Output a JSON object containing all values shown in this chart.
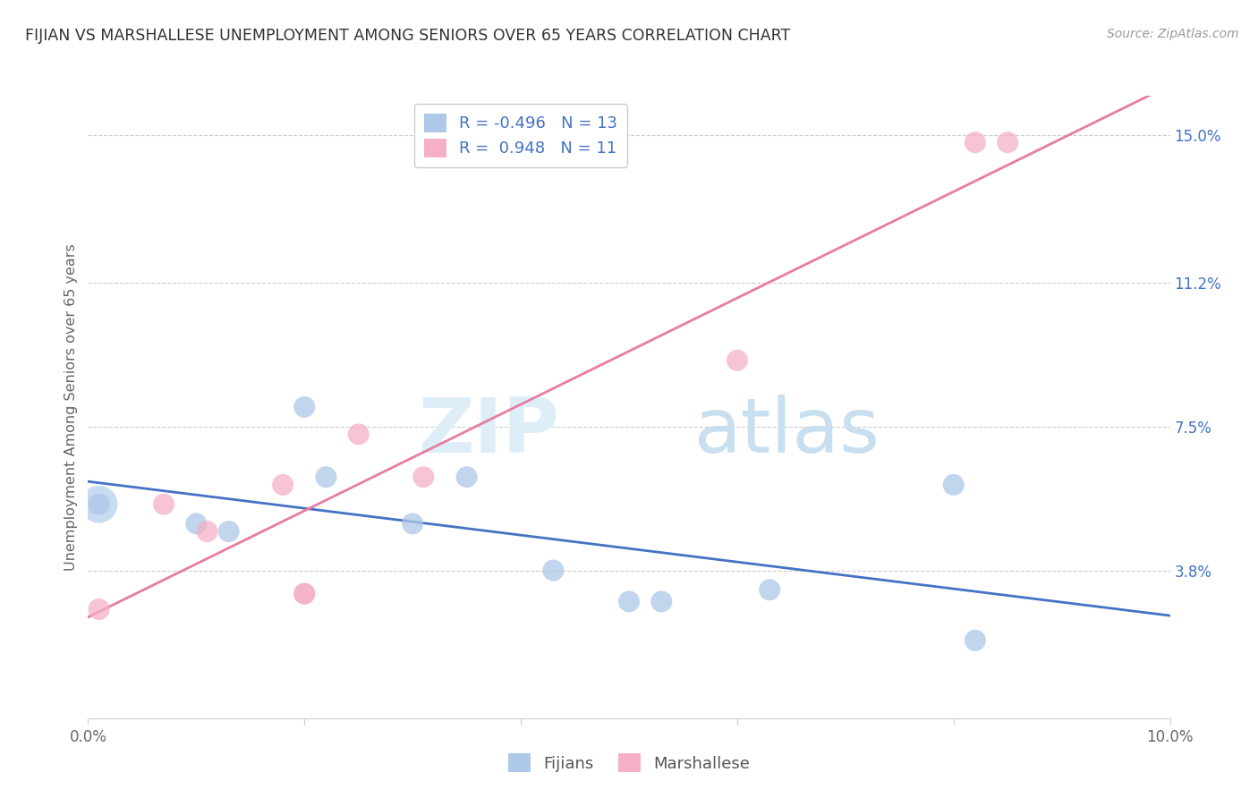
{
  "title": "FIJIAN VS MARSHALLESE UNEMPLOYMENT AMONG SENIORS OVER 65 YEARS CORRELATION CHART",
  "source": "Source: ZipAtlas.com",
  "ylabel": "Unemployment Among Seniors over 65 years",
  "xlim": [
    0.0,
    0.1
  ],
  "ylim": [
    0.0,
    0.16
  ],
  "xticks": [
    0.0,
    0.02,
    0.04,
    0.06,
    0.08,
    0.1
  ],
  "xticklabels": [
    "0.0%",
    "",
    "",
    "",
    "",
    "10.0%"
  ],
  "ytick_positions": [
    0.038,
    0.075,
    0.112,
    0.15
  ],
  "ytick_labels": [
    "3.8%",
    "7.5%",
    "11.2%",
    "15.0%"
  ],
  "fijian_color": "#adc8e8",
  "marshallese_color": "#f5b0c5",
  "fijian_line_color": "#4472c4",
  "marshallese_line_color": "#e87ca0",
  "fijian_R": -0.496,
  "fijian_N": 13,
  "marshallese_R": 0.948,
  "marshallese_N": 11,
  "fijian_x": [
    0.001,
    0.01,
    0.013,
    0.02,
    0.022,
    0.03,
    0.035,
    0.043,
    0.05,
    0.053,
    0.063,
    0.08,
    0.082
  ],
  "fijian_y": [
    0.055,
    0.05,
    0.048,
    0.08,
    0.062,
    0.05,
    0.062,
    0.038,
    0.03,
    0.03,
    0.033,
    0.06,
    0.02
  ],
  "marshallese_x": [
    0.001,
    0.007,
    0.011,
    0.018,
    0.02,
    0.02,
    0.025,
    0.031,
    0.06,
    0.082,
    0.085
  ],
  "marshallese_y": [
    0.028,
    0.055,
    0.048,
    0.06,
    0.032,
    0.032,
    0.073,
    0.062,
    0.092,
    0.148,
    0.148
  ],
  "watermark_zip": "ZIP",
  "watermark_atlas": "atlas",
  "legend_label_fijian": "Fijians",
  "legend_label_marshallese": "Marshallese",
  "background_color": "#ffffff",
  "grid_color": "#cccccc"
}
